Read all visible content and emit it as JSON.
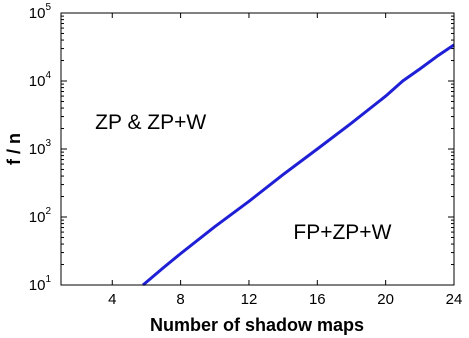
{
  "chart_data": {
    "type": "line",
    "title": "",
    "xlabel": "Number of shadow maps",
    "ylabel": "f / n",
    "xlim": [
      1,
      24
    ],
    "ylim": [
      10,
      100000
    ],
    "yscale": "log",
    "grid": false,
    "x_ticks": [
      4,
      8,
      12,
      16,
      20,
      24
    ],
    "x_tick_labels": [
      "4",
      "8",
      "12",
      "16",
      "20",
      "24"
    ],
    "y_ticks": [
      {
        "value": 10,
        "base": "10",
        "exp": "1"
      },
      {
        "value": 100,
        "base": "10",
        "exp": "2"
      },
      {
        "value": 1000,
        "base": "10",
        "exp": "3"
      },
      {
        "value": 10000,
        "base": "10",
        "exp": "4"
      },
      {
        "value": 100000,
        "base": "10",
        "exp": "5"
      }
    ],
    "series": [
      {
        "color": "#1f1fd6",
        "x": [
          5.8,
          7.0,
          8.0,
          10.0,
          12.0,
          14.0,
          16.0,
          18.0,
          20.0,
          21.0,
          22.0,
          23.0,
          24.0
        ],
        "y": [
          10,
          18,
          29,
          72,
          170,
          420,
          1000,
          2400,
          6000,
          10000,
          15000,
          23000,
          34000
        ]
      }
    ],
    "annotations": [
      {
        "text": "ZP & ZP+W",
        "x": 3.0,
        "y": 2500
      },
      {
        "text": "FP+ZP+W",
        "x": 14.6,
        "y": 60
      }
    ]
  }
}
